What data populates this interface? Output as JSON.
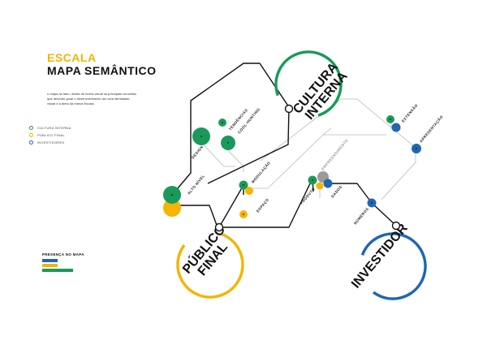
{
  "header": {
    "title_line1": "ESCALA",
    "title_line2": "MAPA SEMÂNTICO",
    "description": "o mapa ao lado, ilustra de forma visual os principais conceitos que deverão guiar o desenvolvimento da nova identidade visual e a alma da marca Escala."
  },
  "legend": {
    "items": [
      {
        "label": "CULTURA INTERNA",
        "color": "#1a9a5a"
      },
      {
        "label": "PÚBLICO FINAL",
        "color": "#f5b400"
      },
      {
        "label": "INVESTIDORES",
        "color": "#1f66b3"
      }
    ]
  },
  "presenca": {
    "title": "PRESENÇA NO MAPA",
    "bars": [
      {
        "color": "#1f66b3",
        "fraction": 0.5
      },
      {
        "color": "#f5b400",
        "fraction": 0.5
      },
      {
        "color": "#1a9a5a",
        "fraction": 1.0
      }
    ]
  },
  "colors": {
    "green": "#1a9a5a",
    "yellow": "#f5b400",
    "blue": "#1f66b3",
    "gray": "#9a9a9a",
    "dark": "#111111"
  },
  "hubs": {
    "cultura": {
      "line1": "CULTURA",
      "line2": "INTERNA"
    },
    "publico": {
      "line1": "PÚBLICO",
      "line2": "FINAL"
    },
    "investidor": {
      "line1": "INVESTIDOR"
    }
  },
  "nodes": {
    "design": "DESIGN",
    "tendencias": "TENDÊNCIAS",
    "coolhunting": "COOL-HUNTING",
    "altonivel": "ALTO NÍVEL",
    "modulacao": "MODULAÇÃO",
    "espaco": "ESPAÇO",
    "produto": "PRODUTO",
    "empreendimento": "EMPREENDIMENTO",
    "dados": "DADOS",
    "numeros": "NÚMEROS",
    "extensao": "EXTENSÃO",
    "apresentacao": "APRESENTAÇÃO"
  }
}
